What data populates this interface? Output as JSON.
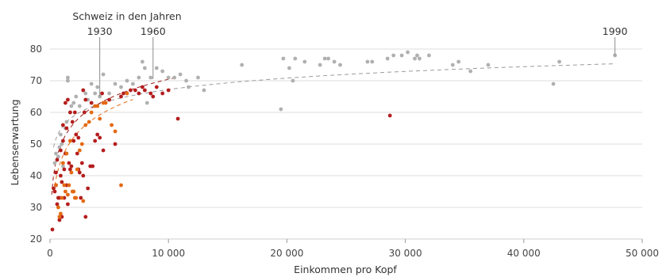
{
  "chart_data": {
    "type": "scatter",
    "title": "",
    "xlabel": "Einkommen pro Kopf",
    "ylabel": "Lebenserwartung",
    "xlim": [
      0,
      50000
    ],
    "ylim": [
      20,
      80
    ],
    "xticks": [
      0,
      10000,
      20000,
      30000,
      40000,
      50000
    ],
    "xtick_labels": [
      "0",
      "10 000",
      "20 000",
      "30 000",
      "40 000",
      "50 000"
    ],
    "yticks": [
      20,
      30,
      40,
      50,
      60,
      70,
      80
    ],
    "ytick_labels": [
      "20",
      "30",
      "40",
      "50",
      "60",
      "70",
      "80"
    ],
    "grid": "horizontal",
    "legend": "none",
    "annotations": [
      {
        "text": "Schweiz in den Jahren",
        "role": "group-title"
      },
      {
        "text": "1930",
        "x": 4200,
        "y": 65,
        "role": "marker"
      },
      {
        "text": "1960",
        "x": 8700,
        "y": 70.5,
        "role": "marker"
      },
      {
        "text": "1990",
        "x": 47700,
        "y": 78,
        "role": "marker"
      }
    ],
    "series": [
      {
        "color": "#b0b0b0",
        "values": [
          [
            400,
            44
          ],
          [
            500,
            47
          ],
          [
            700,
            46
          ],
          [
            800,
            49
          ],
          [
            1000,
            50
          ],
          [
            1100,
            43
          ],
          [
            900,
            53
          ],
          [
            1300,
            55
          ],
          [
            1400,
            57
          ],
          [
            1500,
            70
          ],
          [
            1500,
            71
          ],
          [
            1700,
            60
          ],
          [
            1800,
            62
          ],
          [
            2000,
            63
          ],
          [
            2200,
            65
          ],
          [
            2500,
            62
          ],
          [
            2800,
            67
          ],
          [
            3000,
            66
          ],
          [
            3200,
            64
          ],
          [
            3500,
            69
          ],
          [
            3800,
            66
          ],
          [
            4000,
            68
          ],
          [
            4200,
            65
          ],
          [
            4500,
            72
          ],
          [
            5000,
            66
          ],
          [
            5500,
            69
          ],
          [
            6000,
            68
          ],
          [
            6500,
            70
          ],
          [
            7000,
            69
          ],
          [
            7500,
            71
          ],
          [
            7800,
            76
          ],
          [
            8000,
            74
          ],
          [
            8200,
            63
          ],
          [
            8500,
            71
          ],
          [
            9000,
            74
          ],
          [
            9500,
            73
          ],
          [
            10000,
            71
          ],
          [
            10500,
            71
          ],
          [
            11000,
            72
          ],
          [
            11500,
            70
          ],
          [
            11700,
            68
          ],
          [
            12500,
            71
          ],
          [
            13000,
            67
          ],
          [
            16200,
            75
          ],
          [
            19500,
            61
          ],
          [
            19700,
            77
          ],
          [
            20200,
            74
          ],
          [
            20500,
            70
          ],
          [
            20700,
            77
          ],
          [
            21500,
            76
          ],
          [
            22800,
            75
          ],
          [
            23200,
            77
          ],
          [
            23500,
            77
          ],
          [
            24000,
            76
          ],
          [
            24500,
            75
          ],
          [
            26800,
            76
          ],
          [
            27200,
            76
          ],
          [
            28500,
            77
          ],
          [
            29000,
            78
          ],
          [
            29700,
            78
          ],
          [
            30200,
            79
          ],
          [
            30800,
            77
          ],
          [
            31000,
            78
          ],
          [
            31200,
            77
          ],
          [
            32000,
            78
          ],
          [
            34000,
            75
          ],
          [
            34500,
            76
          ],
          [
            35500,
            73
          ],
          [
            37000,
            75
          ],
          [
            42500,
            69
          ],
          [
            43000,
            76
          ],
          [
            47700,
            78
          ]
        ]
      },
      {
        "color": "#b41e1e",
        "values": [
          [
            200,
            23
          ],
          [
            300,
            36
          ],
          [
            400,
            35
          ],
          [
            500,
            37
          ],
          [
            500,
            41
          ],
          [
            600,
            45
          ],
          [
            600,
            31
          ],
          [
            700,
            33
          ],
          [
            800,
            33
          ],
          [
            800,
            26
          ],
          [
            900,
            40
          ],
          [
            900,
            48
          ],
          [
            1000,
            38
          ],
          [
            1000,
            27
          ],
          [
            1100,
            51
          ],
          [
            1100,
            56
          ],
          [
            1200,
            33
          ],
          [
            1200,
            42
          ],
          [
            1300,
            63
          ],
          [
            1300,
            47
          ],
          [
            1400,
            37
          ],
          [
            1400,
            55
          ],
          [
            1500,
            31
          ],
          [
            1500,
            64
          ],
          [
            1600,
            44
          ],
          [
            1700,
            60
          ],
          [
            1700,
            42
          ],
          [
            1800,
            43
          ],
          [
            1900,
            57
          ],
          [
            2000,
            51
          ],
          [
            2100,
            60
          ],
          [
            2200,
            53
          ],
          [
            2300,
            47
          ],
          [
            2400,
            52
          ],
          [
            2400,
            42
          ],
          [
            2500,
            41
          ],
          [
            2600,
            33
          ],
          [
            2700,
            44
          ],
          [
            2800,
            40
          ],
          [
            2800,
            67
          ],
          [
            2900,
            60
          ],
          [
            3000,
            64
          ],
          [
            3000,
            27
          ],
          [
            3200,
            36
          ],
          [
            3400,
            43
          ],
          [
            3500,
            63
          ],
          [
            3600,
            43
          ],
          [
            3800,
            51
          ],
          [
            4000,
            53
          ],
          [
            4200,
            52
          ],
          [
            4400,
            66
          ],
          [
            4500,
            48
          ],
          [
            5000,
            64
          ],
          [
            5500,
            50
          ],
          [
            6000,
            65
          ],
          [
            6200,
            66
          ],
          [
            6800,
            67
          ],
          [
            7200,
            67
          ],
          [
            7500,
            66
          ],
          [
            7800,
            68
          ],
          [
            8000,
            67
          ],
          [
            8500,
            66
          ],
          [
            8700,
            65
          ],
          [
            9000,
            68
          ],
          [
            9500,
            66
          ],
          [
            10000,
            67
          ],
          [
            10800,
            58
          ],
          [
            28700,
            59
          ]
        ]
      },
      {
        "color": "#e36a12",
        "values": [
          [
            500,
            37
          ],
          [
            700,
            30
          ],
          [
            800,
            27
          ],
          [
            900,
            28
          ],
          [
            1000,
            33
          ],
          [
            1100,
            44
          ],
          [
            1200,
            37
          ],
          [
            1300,
            35
          ],
          [
            1400,
            47
          ],
          [
            1500,
            34
          ],
          [
            1600,
            37
          ],
          [
            1700,
            51
          ],
          [
            1800,
            41
          ],
          [
            1900,
            35
          ],
          [
            2000,
            35
          ],
          [
            2100,
            33
          ],
          [
            2200,
            33
          ],
          [
            2300,
            42
          ],
          [
            2500,
            48
          ],
          [
            2700,
            50
          ],
          [
            2800,
            32
          ],
          [
            3000,
            56
          ],
          [
            3300,
            57
          ],
          [
            3500,
            60
          ],
          [
            3800,
            62
          ],
          [
            4000,
            62
          ],
          [
            4200,
            58
          ],
          [
            4500,
            63
          ],
          [
            4700,
            63
          ],
          [
            5200,
            56
          ],
          [
            5500,
            54
          ],
          [
            6000,
            37
          ],
          [
            6500,
            66
          ]
        ]
      }
    ],
    "trendlines": [
      {
        "color": "#9a9a9a",
        "style": "dashed",
        "curve": "y = 63.6 + 12.0*log10(x/5000)",
        "x_range": [
          300,
          47700
        ]
      },
      {
        "color": "#9b1c1c",
        "style": "dashed",
        "curve": "y = 60 + 20*log10(x/3000)",
        "x_range": [
          150,
          10500
        ]
      },
      {
        "color": "#e36a12",
        "style": "dashed",
        "curve": "y = 56 + 22*log10(x/3000)",
        "x_range": [
          400,
          7000
        ]
      }
    ]
  }
}
